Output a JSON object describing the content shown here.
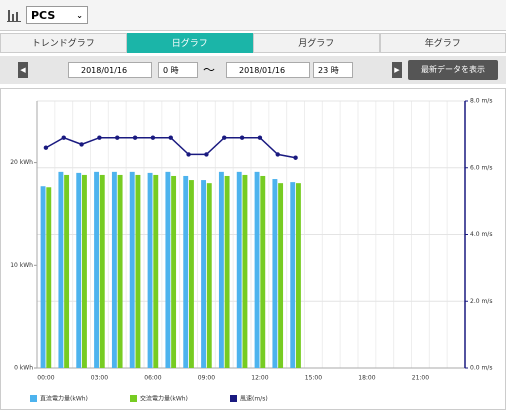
{
  "header": {
    "selector": "PCS"
  },
  "tabs": [
    "トレンドグラフ",
    "日グラフ",
    "月グラフ",
    "年グラフ"
  ],
  "controls": {
    "start_date": "2018/01/16",
    "start_hour": "0 時",
    "separator": "～",
    "end_date": "2018/01/16",
    "end_hour": "23 時",
    "button": "最新データを表示"
  },
  "chart_data": {
    "type": "bar",
    "categories": [
      "00:00",
      null,
      null,
      "03:00",
      null,
      null,
      "06:00",
      null,
      null,
      "09:00",
      null,
      null,
      "12:00",
      null,
      null,
      "15:00",
      null,
      null,
      "18:00",
      null,
      null,
      "21:00",
      null,
      null
    ],
    "series": [
      {
        "name": "直流電力量(kWh)",
        "color": "#4db3ee",
        "type": "bar",
        "values": [
          17.7,
          19.1,
          19.0,
          19.1,
          19.1,
          19.1,
          19.0,
          19.1,
          18.7,
          18.3,
          19.1,
          19.1,
          19.1,
          18.4,
          18.1,
          null,
          null,
          null,
          null,
          null,
          null,
          null,
          null,
          null
        ]
      },
      {
        "name": "交流電力量(kWh)",
        "color": "#77cc22",
        "type": "bar",
        "values": [
          17.6,
          18.8,
          18.8,
          18.8,
          18.8,
          18.8,
          18.8,
          18.7,
          18.3,
          18.0,
          18.7,
          18.8,
          18.7,
          18.0,
          18.0,
          null,
          null,
          null,
          null,
          null,
          null,
          null,
          null,
          null
        ]
      },
      {
        "name": "風速(m/s)",
        "color": "#1a1a80",
        "type": "line",
        "axis": "y2",
        "values": [
          6.6,
          6.9,
          6.7,
          6.9,
          6.9,
          6.9,
          6.9,
          6.9,
          6.4,
          6.4,
          6.9,
          6.9,
          6.9,
          6.4,
          6.3,
          null,
          null,
          null,
          null,
          null,
          null,
          null,
          null,
          null
        ]
      }
    ],
    "ylim": [
      0,
      26
    ],
    "yticks": [
      {
        "value": 0,
        "label": "0 kWh"
      },
      {
        "value": 10,
        "label": "10 kWh"
      },
      {
        "value": 20,
        "label": "20 kWh"
      }
    ],
    "y2lim": [
      0,
      8
    ],
    "y2ticks": [
      {
        "value": 0,
        "label": "0.0 m/s"
      },
      {
        "value": 2,
        "label": "2.0 m/s"
      },
      {
        "value": 4,
        "label": "4.0 m/s"
      },
      {
        "value": 6,
        "label": "6.0 m/s"
      },
      {
        "value": 8,
        "label": "8.0 m/s"
      }
    ],
    "grid": true
  }
}
